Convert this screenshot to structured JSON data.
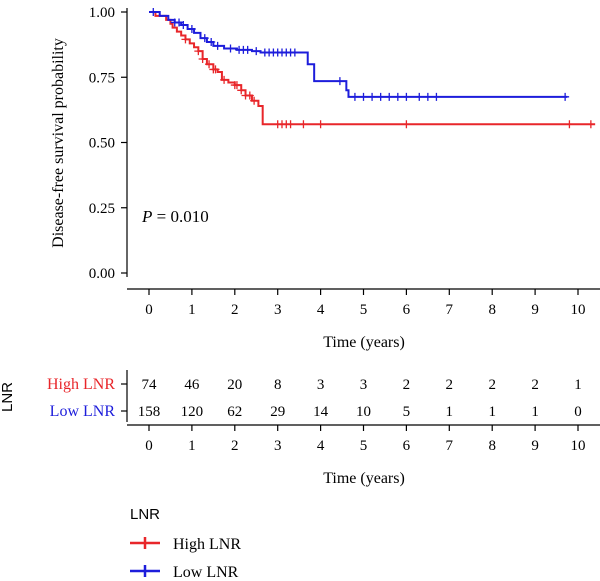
{
  "chart_data": [
    {
      "type": "line",
      "subtype": "kaplan-meier",
      "title": "",
      "xlabel": "Time (years)",
      "ylabel": "Disease-free survival probability",
      "xlim": [
        0,
        10
      ],
      "ylim": [
        0,
        1
      ],
      "x_ticks": [
        "0",
        "1",
        "2",
        "3",
        "4",
        "5",
        "6",
        "7",
        "8",
        "9",
        "10"
      ],
      "y_ticks": [
        "0.00",
        "0.25",
        "0.50",
        "0.75",
        "1.00"
      ],
      "annotation": {
        "p_label": "P",
        "p_value_text": " = 0.010"
      },
      "series": [
        {
          "name": "High LNR",
          "color": "#e8262a",
          "steps": [
            [
              0,
              1.0
            ],
            [
              0.15,
              0.985
            ],
            [
              0.4,
              0.97
            ],
            [
              0.5,
              0.955
            ],
            [
              0.55,
              0.94
            ],
            [
              0.65,
              0.925
            ],
            [
              0.75,
              0.91
            ],
            [
              0.85,
              0.895
            ],
            [
              0.95,
              0.88
            ],
            [
              1.05,
              0.865
            ],
            [
              1.15,
              0.85
            ],
            [
              1.25,
              0.82
            ],
            [
              1.35,
              0.8
            ],
            [
              1.5,
              0.78
            ],
            [
              1.6,
              0.77
            ],
            [
              1.7,
              0.74
            ],
            [
              1.85,
              0.73
            ],
            [
              2.0,
              0.72
            ],
            [
              2.15,
              0.7
            ],
            [
              2.25,
              0.68
            ],
            [
              2.4,
              0.66
            ],
            [
              2.55,
              0.64
            ],
            [
              2.65,
              0.57
            ],
            [
              10.4,
              0.57
            ]
          ],
          "censor_x": [
            0.85,
            1.15,
            1.25,
            1.4,
            1.5,
            1.55,
            1.75,
            2.0,
            2.05,
            2.15,
            2.25,
            2.35,
            2.45,
            3.0,
            3.1,
            3.2,
            3.3,
            3.6,
            4.0,
            6.0,
            9.8,
            10.3
          ]
        },
        {
          "name": "Low LNR",
          "color": "#1d1ddb",
          "steps": [
            [
              0,
              1.0
            ],
            [
              0.25,
              0.985
            ],
            [
              0.45,
              0.97
            ],
            [
              0.6,
              0.96
            ],
            [
              0.75,
              0.95
            ],
            [
              0.9,
              0.935
            ],
            [
              1.05,
              0.92
            ],
            [
              1.2,
              0.9
            ],
            [
              1.35,
              0.885
            ],
            [
              1.5,
              0.87
            ],
            [
              1.75,
              0.86
            ],
            [
              2.05,
              0.855
            ],
            [
              2.4,
              0.85
            ],
            [
              2.6,
              0.845
            ],
            [
              3.7,
              0.8
            ],
            [
              3.85,
              0.735
            ],
            [
              4.6,
              0.7
            ],
            [
              4.65,
              0.675
            ],
            [
              9.75,
              0.675
            ]
          ],
          "censor_x": [
            0.1,
            0.6,
            0.7,
            0.8,
            1.0,
            1.3,
            1.45,
            1.6,
            1.9,
            2.1,
            2.2,
            2.3,
            2.5,
            2.7,
            2.8,
            2.9,
            3.0,
            3.1,
            3.2,
            3.3,
            3.4,
            4.45,
            4.8,
            5.0,
            5.2,
            5.4,
            5.6,
            5.8,
            6.0,
            6.3,
            6.5,
            6.7,
            9.7
          ]
        }
      ]
    },
    {
      "type": "table",
      "title": "LNR",
      "xlabel": "Time (years)",
      "columns": [
        "0",
        "1",
        "2",
        "3",
        "4",
        "5",
        "6",
        "7",
        "8",
        "9",
        "10"
      ],
      "rows": [
        {
          "name": "High LNR",
          "color": "#e8262a",
          "values": [
            "74",
            "46",
            "20",
            "8",
            "3",
            "3",
            "2",
            "2",
            "2",
            "2",
            "1"
          ]
        },
        {
          "name": "Low LNR",
          "color": "#1d1ddb",
          "values": [
            "158",
            "120",
            "62",
            "29",
            "14",
            "10",
            "5",
            "1",
            "1",
            "1",
            "0"
          ]
        }
      ]
    }
  ],
  "legend": {
    "title": "LNR",
    "items": [
      {
        "label": "High LNR",
        "color": "#e8262a"
      },
      {
        "label": "Low LNR",
        "color": "#1d1ddb"
      }
    ]
  }
}
